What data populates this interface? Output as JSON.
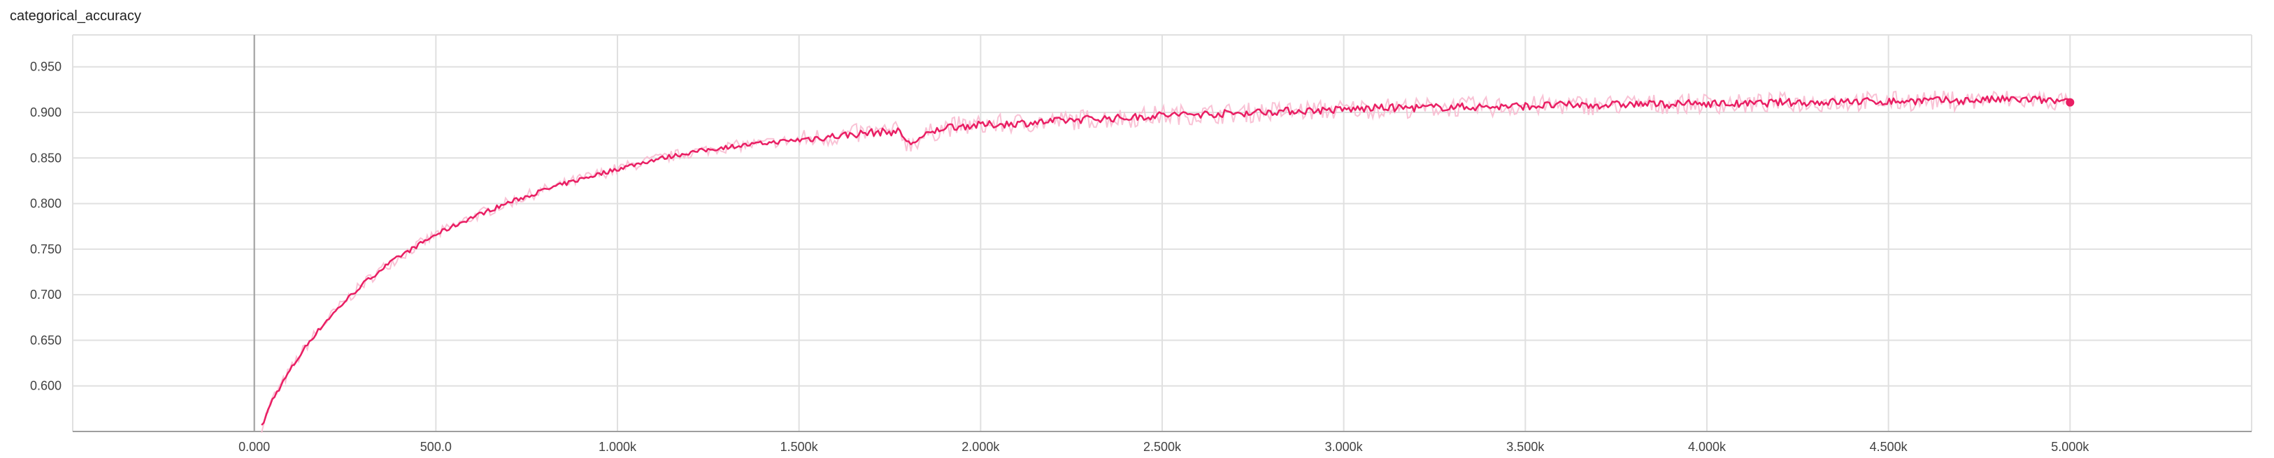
{
  "chart_data": {
    "type": "line",
    "title": "categorical_accuracy",
    "xlabel": "",
    "ylabel": "",
    "xlim": [
      -500,
      5500
    ],
    "ylim": [
      0.55,
      0.985
    ],
    "grid": true,
    "x_ticks": [
      0,
      500,
      1000,
      1500,
      2000,
      2500,
      3000,
      3500,
      4000,
      4500,
      5000
    ],
    "x_tick_labels": [
      "0.000",
      "500.0",
      "1.000k",
      "1.500k",
      "2.000k",
      "2.500k",
      "3.000k",
      "3.500k",
      "4.000k",
      "4.500k",
      "5.000k"
    ],
    "y_ticks": [
      0.6,
      0.65,
      0.7,
      0.75,
      0.8,
      0.85,
      0.9,
      0.95
    ],
    "y_tick_labels": [
      "0.600",
      "0.650",
      "0.700",
      "0.750",
      "0.800",
      "0.850",
      "0.900",
      "0.950"
    ],
    "colors": {
      "smoothed": "#e91e63",
      "raw": "#f8bbd0"
    },
    "series": [
      {
        "name": "",
        "x": [
          20,
          50,
          100,
          150,
          200,
          250,
          300,
          350,
          400,
          450,
          500,
          600,
          700,
          800,
          900,
          1000,
          1100,
          1200,
          1300,
          1400,
          1500,
          1600,
          1700,
          1780,
          1800,
          1900,
          2000,
          2100,
          2200,
          2300,
          2400,
          2500,
          2600,
          2700,
          2800,
          2900,
          3000,
          3100,
          3200,
          3300,
          3400,
          3500,
          3600,
          3700,
          3800,
          3900,
          4000,
          4100,
          4200,
          4300,
          4400,
          4500,
          4600,
          4700,
          4800,
          4900,
          5000
        ],
        "y": [
          0.555,
          0.585,
          0.618,
          0.648,
          0.672,
          0.693,
          0.712,
          0.728,
          0.742,
          0.754,
          0.766,
          0.785,
          0.801,
          0.815,
          0.827,
          0.838,
          0.848,
          0.856,
          0.862,
          0.866,
          0.87,
          0.874,
          0.878,
          0.879,
          0.865,
          0.884,
          0.886,
          0.888,
          0.89,
          0.893,
          0.894,
          0.897,
          0.898,
          0.899,
          0.901,
          0.902,
          0.903,
          0.905,
          0.905,
          0.906,
          0.906,
          0.907,
          0.908,
          0.908,
          0.909,
          0.909,
          0.91,
          0.909,
          0.911,
          0.911,
          0.912,
          0.912,
          0.913,
          0.913,
          0.914,
          0.914,
          0.911
        ]
      }
    ]
  }
}
